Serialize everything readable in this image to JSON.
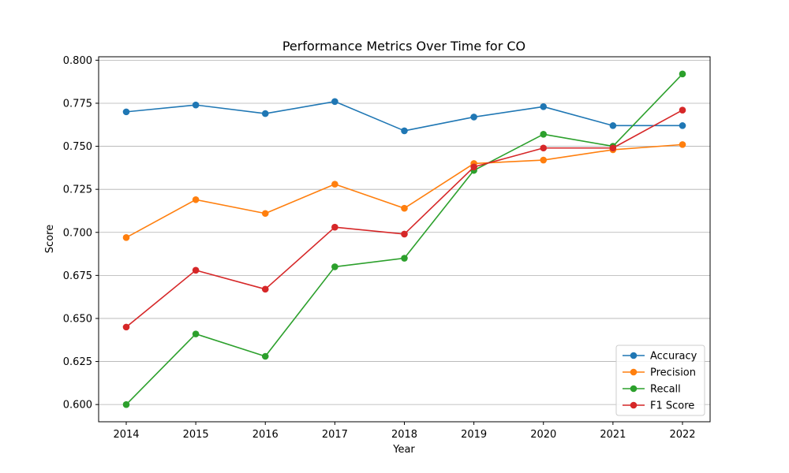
{
  "chart_data": {
    "type": "line",
    "title": "Performance Metrics Over Time for CO",
    "xlabel": "Year",
    "ylabel": "Score",
    "categories": [
      "2014",
      "2015",
      "2016",
      "2017",
      "2018",
      "2019",
      "2020",
      "2021",
      "2022"
    ],
    "ylim": [
      0.59,
      0.802
    ],
    "yticks": [
      "0.600",
      "0.625",
      "0.650",
      "0.675",
      "0.700",
      "0.725",
      "0.750",
      "0.775",
      "0.800"
    ],
    "grid": "horizontal",
    "legend_position": "lower-right",
    "series": [
      {
        "name": "Accuracy",
        "color": "#1f77b4",
        "values": [
          0.77,
          0.774,
          0.769,
          0.776,
          0.759,
          0.767,
          0.773,
          0.762,
          0.762
        ]
      },
      {
        "name": "Precision",
        "color": "#ff7f0e",
        "values": [
          0.697,
          0.719,
          0.711,
          0.728,
          0.714,
          0.74,
          0.742,
          0.748,
          0.751
        ]
      },
      {
        "name": "Recall",
        "color": "#2ca02c",
        "values": [
          0.6,
          0.641,
          0.628,
          0.68,
          0.685,
          0.736,
          0.757,
          0.75,
          0.792
        ]
      },
      {
        "name": "F1 Score",
        "color": "#d62728",
        "values": [
          0.645,
          0.678,
          0.667,
          0.703,
          0.699,
          0.738,
          0.749,
          0.749,
          0.771
        ]
      }
    ]
  }
}
